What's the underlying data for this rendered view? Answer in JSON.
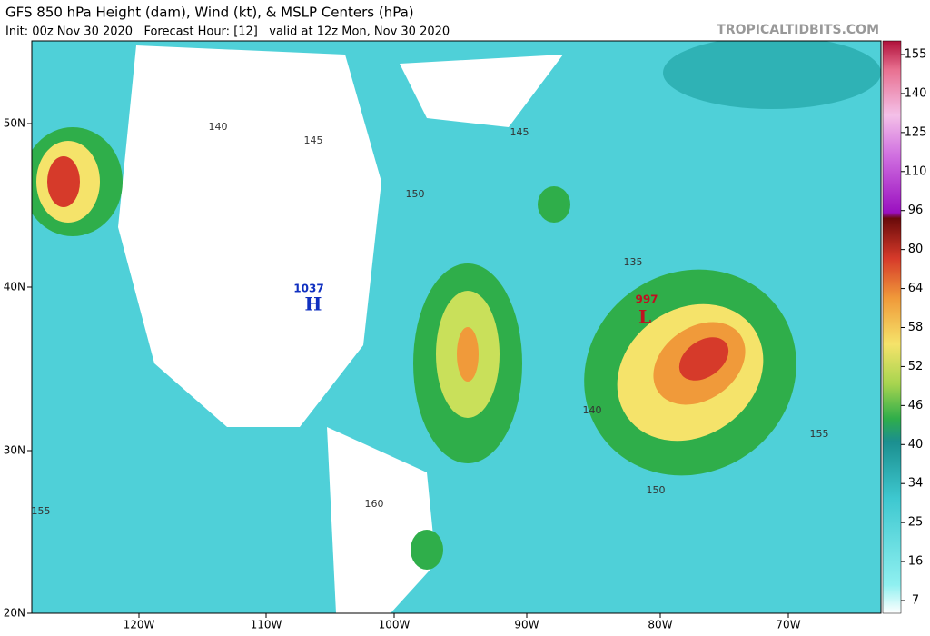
{
  "header": {
    "title": "GFS 850 hPa Height (dam), Wind (kt), & MSLP Centers (hPa)",
    "subtitle": "Init: 00z Nov 30 2020   Forecast Hour: [12]   valid at 12z Mon, Nov 30 2020",
    "site": "TROPICALTIDBITS.COM"
  },
  "map": {
    "longitude_labels": [
      "120W",
      "110W",
      "100W",
      "90W",
      "80W",
      "70W"
    ],
    "latitude_labels": [
      "50N",
      "40N",
      "30N",
      "20N"
    ],
    "pressure_centers": [
      {
        "value": "1037",
        "label": "H"
      },
      {
        "value": "997",
        "label": "L"
      }
    ],
    "contour_labels": [
      "140",
      "145",
      "145",
      "150",
      "135",
      "140",
      "150",
      "155",
      "160",
      "155"
    ]
  },
  "colorbar": {
    "ticks": [
      "155",
      "140",
      "125",
      "110",
      "96",
      "80",
      "64",
      "58",
      "52",
      "46",
      "40",
      "34",
      "25",
      "16",
      "7"
    ]
  }
}
